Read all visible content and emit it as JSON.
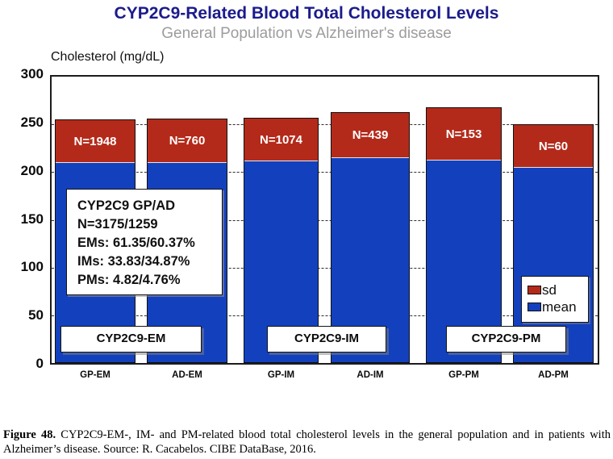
{
  "title": "CYP2C9-Related Blood Total Cholesterol Levels",
  "subtitle": "General Population vs Alzheimer's disease",
  "axis_title": "Cholesterol (mg/dL)",
  "chart_data": {
    "type": "bar",
    "stacked": true,
    "categories": [
      "GP-EM",
      "AD-EM",
      "GP-IM",
      "AD-IM",
      "GP-PM",
      "AD-PM"
    ],
    "series": [
      {
        "name": "mean",
        "color": "#1341be",
        "values": [
          210,
          210,
          212,
          216,
          213,
          205
        ]
      },
      {
        "name": "sd",
        "color": "#b42a1a",
        "values": [
          45,
          46,
          45,
          47,
          55,
          45
        ]
      }
    ],
    "totals": [
      255,
      256,
      257,
      263,
      268,
      250
    ],
    "bar_labels": [
      "N=1948",
      "N=760",
      "N=1074",
      "N=439",
      "N=153",
      "N=60"
    ],
    "ylabel": "Cholesterol (mg/dL)",
    "ylim": [
      0,
      300
    ],
    "yticks": [
      0,
      50,
      100,
      150,
      200,
      250,
      300
    ],
    "grid": "horizontal-dashed",
    "legend_position": "inside-right",
    "legend": [
      {
        "label": "sd",
        "color": "#b42a1a"
      },
      {
        "label": "mean",
        "color": "#1341be"
      }
    ]
  },
  "annotation_box": {
    "lines": [
      "CYP2C9 GP/AD",
      "N=3175/1259",
      "EMs: 61.35/60.37%",
      "IMs: 33.83/34.87%",
      "PMs: 4.82/4.76%"
    ]
  },
  "group_labels": [
    {
      "label": "CYP2C9-EM"
    },
    {
      "label": "CYP2C9-IM"
    },
    {
      "label": "CYP2C9-PM"
    }
  ],
  "caption": {
    "figure_label": "Figure 48.",
    "line1": " CYP2C9-EM-, IM- and PM-related blood total cholesterol levels in the general population and in patients with",
    "line2": "Alzheimer’s disease. Source: R. Cacabelos. CIBE DataBase, 2016."
  },
  "colors": {
    "title": "#1b1b8c",
    "subtitle": "#9c9c9c",
    "bar_mean": "#1341be",
    "bar_sd": "#b42a1a"
  }
}
